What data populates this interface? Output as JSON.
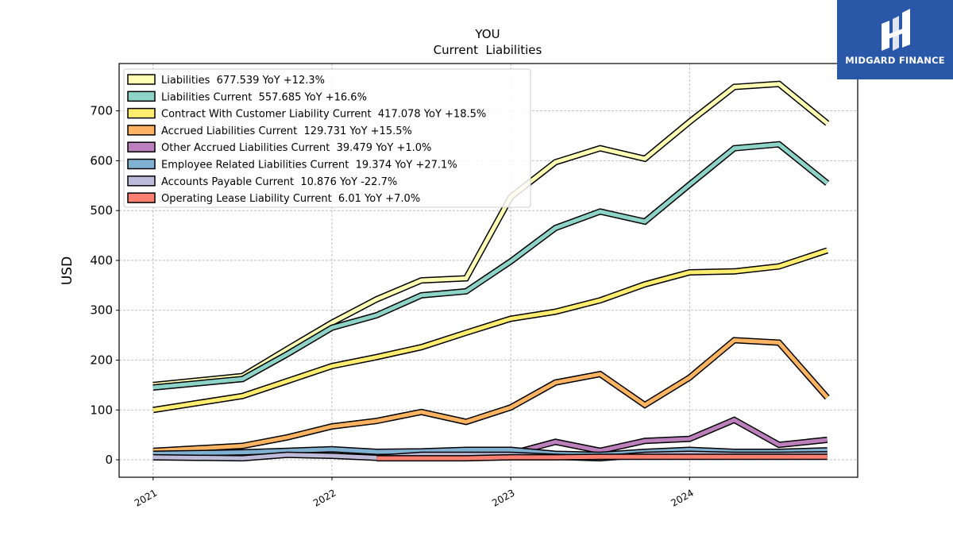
{
  "chart_data": {
    "type": "line",
    "title": "YOU",
    "subtitle": "Current  Liabilities",
    "xlabel": "",
    "ylabel": "USD",
    "ylim": [
      -35,
      795
    ],
    "xlim": [
      2020.81,
      2024.94
    ],
    "yticks": [
      0,
      100,
      200,
      300,
      400,
      500,
      600,
      700
    ],
    "xticks": [
      {
        "value": 2021.0,
        "label": "2021"
      },
      {
        "value": 2022.0,
        "label": "2022"
      },
      {
        "value": 2023.0,
        "label": "2023"
      },
      {
        "value": 2024.0,
        "label": "2024"
      }
    ],
    "grid": true,
    "legend_position": "top-left",
    "series": [
      {
        "name": "Liabilities",
        "legend": "Liabilities  677.539 YoY +12.3%",
        "color": "#ffffb3",
        "x": [
          2021.0,
          2021.5,
          2021.75,
          2022.0,
          2022.25,
          2022.5,
          2022.75,
          2023.0,
          2023.25,
          2023.5,
          2023.75,
          2024.0,
          2024.25,
          2024.5,
          2024.77
        ],
        "y": [
          150,
          168,
          222,
          275,
          322,
          360,
          364,
          527,
          597,
          625,
          604,
          678,
          748,
          754,
          675
        ]
      },
      {
        "name": "Liabilities Current",
        "legend": "Liabilities Current  557.685 YoY +16.6%",
        "color": "#8dd3c7",
        "x": [
          2021.0,
          2021.5,
          2021.75,
          2022.0,
          2022.25,
          2022.5,
          2022.75,
          2023.0,
          2023.25,
          2023.5,
          2023.75,
          2024.0,
          2024.25,
          2024.5,
          2024.77
        ],
        "y": [
          145,
          162,
          212,
          265,
          290,
          330,
          338,
          398,
          465,
          498,
          478,
          552,
          625,
          633,
          555
        ]
      },
      {
        "name": "Contract With Customer Liability Current",
        "legend": "Contract With Customer Liability Current  417.078 YoY +18.5%",
        "color": "#ffed6f",
        "x": [
          2021.0,
          2021.5,
          2021.75,
          2022.0,
          2022.25,
          2022.5,
          2022.75,
          2023.0,
          2023.25,
          2023.5,
          2023.75,
          2024.0,
          2024.25,
          2024.5,
          2024.77
        ],
        "y": [
          100,
          128,
          158,
          188,
          206,
          226,
          255,
          283,
          297,
          320,
          352,
          376,
          378,
          388,
          420
        ]
      },
      {
        "name": "Accrued Liabilities Current",
        "legend": "Accrued Liabilities Current  129.731 YoY +15.5%",
        "color": "#fdb462",
        "x": [
          2021.0,
          2021.5,
          2021.75,
          2022.0,
          2022.25,
          2022.5,
          2022.75,
          2023.0,
          2023.25,
          2023.5,
          2023.75,
          2024.0,
          2024.25,
          2024.5,
          2024.77
        ],
        "y": [
          18,
          28,
          45,
          67,
          78,
          96,
          76,
          105,
          155,
          172,
          110,
          165,
          240,
          235,
          125
        ]
      },
      {
        "name": "Other Accrued Liabilities Current",
        "legend": "Other Accrued Liabilities Current  39.479 YoY +1.0%",
        "color": "#bc80bd",
        "x": [
          2022.25,
          2022.5,
          2022.75,
          2023.0,
          2023.25,
          2023.5,
          2023.75,
          2024.0,
          2024.25,
          2024.5,
          2024.77
        ],
        "y": [
          8,
          12,
          14,
          12,
          36,
          18,
          38,
          42,
          80,
          30,
          40
        ]
      },
      {
        "name": "Employee Related Liabilities Current",
        "legend": "Employee Related Liabilities Current  19.374 YoY +27.1%",
        "color": "#80b1d3",
        "x": [
          2021.0,
          2021.5,
          2021.75,
          2022.0,
          2022.25,
          2022.5,
          2022.75,
          2023.0,
          2023.25,
          2023.5,
          2023.75,
          2024.0,
          2024.25,
          2024.5,
          2024.77
        ],
        "y": [
          12,
          15,
          18,
          21,
          16,
          17,
          20,
          20,
          12,
          10,
          16,
          20,
          16,
          16,
          19
        ]
      },
      {
        "name": "Accounts Payable Current",
        "legend": "Accounts Payable Current  10.876 YoY -22.7%",
        "color": "#bebada",
        "x": [
          2021.0,
          2021.5,
          2021.75,
          2022.0,
          2022.25,
          2022.5,
          2022.75,
          2023.0,
          2023.25,
          2023.5,
          2023.75,
          2024.0,
          2024.25,
          2024.5,
          2024.77
        ],
        "y": [
          5,
          3,
          10,
          8,
          4,
          10,
          10,
          10,
          6,
          3,
          10,
          12,
          10,
          10,
          11
        ]
      },
      {
        "name": "Operating Lease Liability Current",
        "legend": "Operating Lease Liability Current  6.01 YoY +7.0%",
        "color": "#fb8072",
        "x": [
          2022.25,
          2022.5,
          2022.75,
          2023.0,
          2023.25,
          2023.5,
          2023.75,
          2024.0,
          2024.25,
          2024.5,
          2024.77
        ],
        "y": [
          3,
          3,
          3,
          5,
          5,
          6,
          6,
          6,
          6,
          6,
          6
        ]
      }
    ]
  },
  "logo": {
    "text": "MIDGARD FINANCE",
    "background": "#2a57a8"
  }
}
